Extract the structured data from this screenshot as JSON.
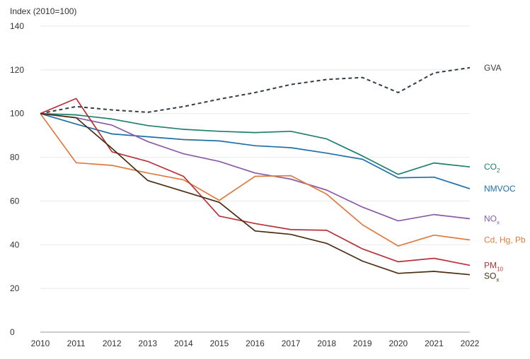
{
  "chart_data": {
    "type": "line",
    "ylabel": "Index (2010=100)",
    "ylim": [
      0,
      140
    ],
    "yticks": [
      0,
      20,
      40,
      60,
      80,
      100,
      120,
      140
    ],
    "x": [
      2010,
      2011,
      2012,
      2013,
      2014,
      2015,
      2016,
      2017,
      2018,
      2019,
      2020,
      2021,
      2022
    ],
    "grid": true,
    "legend": "inline-right",
    "series": [
      {
        "id": "gva",
        "name": "GVA",
        "sub": "",
        "color": "#333d47",
        "dashed": true,
        "values": [
          100,
          103.2,
          101.7,
          100.6,
          103.2,
          106.6,
          109.6,
          113.3,
          115.6,
          116.5,
          109.6,
          118.6,
          121.0
        ]
      },
      {
        "id": "co2",
        "name": "CO",
        "sub": "2",
        "color": "#1d7f6e",
        "dashed": false,
        "values": [
          100,
          99.4,
          97.5,
          94.5,
          92.8,
          91.9,
          91.3,
          91.9,
          88.4,
          80.6,
          72.2,
          77.4,
          75.6
        ]
      },
      {
        "id": "nmvoc",
        "name": "NMVOC",
        "sub": "",
        "color": "#1f6fa8",
        "dashed": false,
        "values": [
          100,
          95.2,
          90.7,
          89.4,
          88.1,
          87.5,
          85.3,
          84.4,
          81.9,
          79.1,
          70.6,
          70.9,
          65.6
        ]
      },
      {
        "id": "nox",
        "name": "NO",
        "sub": "x",
        "color": "#8a5ba8",
        "dashed": false,
        "values": [
          100,
          98.1,
          94.7,
          87.2,
          81.6,
          78.1,
          72.8,
          70.0,
          65.0,
          57.2,
          50.9,
          53.8,
          51.9
        ]
      },
      {
        "id": "metals",
        "name": "Cd, Hg, Pb",
        "sub": "",
        "color": "#e07b3f",
        "dashed": false,
        "values": [
          100,
          77.5,
          76.3,
          72.8,
          69.7,
          60.3,
          71.3,
          71.6,
          63.1,
          49.1,
          39.4,
          44.4,
          42.2
        ]
      },
      {
        "id": "pm10",
        "name": "PM",
        "sub": "10",
        "color": "#b8323a",
        "dashed": false,
        "values": [
          100,
          106.9,
          82.5,
          78.1,
          71.3,
          53.1,
          49.7,
          46.9,
          46.6,
          38.1,
          32.2,
          33.8,
          30.6
        ]
      },
      {
        "id": "sox",
        "name": "SO",
        "sub": "x",
        "color": "#4a2e12",
        "dashed": false,
        "values": [
          100,
          98.1,
          84.1,
          69.4,
          64.4,
          59.4,
          46.3,
          44.7,
          40.6,
          32.5,
          26.9,
          27.8,
          26.3
        ]
      }
    ]
  }
}
